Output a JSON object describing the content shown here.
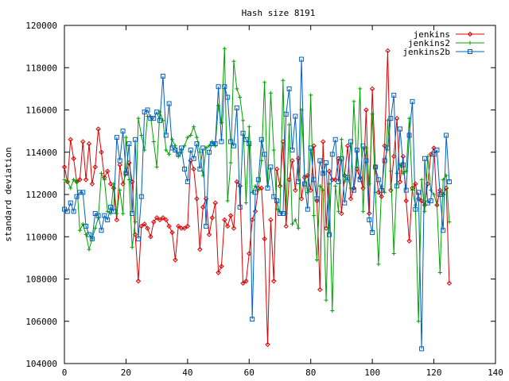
{
  "chart_data": {
    "type": "line",
    "title": "Hash size 8191",
    "xlabel": "",
    "ylabel": "standard deviation",
    "xlim": [
      0,
      140
    ],
    "ylim": [
      104000,
      120000
    ],
    "xticks": [
      0,
      20,
      40,
      60,
      80,
      100,
      120,
      140
    ],
    "yticks": [
      104000,
      106000,
      108000,
      110000,
      112000,
      114000,
      116000,
      118000,
      120000
    ],
    "legend_position": "top-right",
    "grid": false,
    "x": [
      0,
      1,
      2,
      3,
      4,
      5,
      6,
      7,
      8,
      9,
      10,
      11,
      12,
      13,
      14,
      15,
      16,
      17,
      18,
      19,
      20,
      21,
      22,
      23,
      24,
      25,
      26,
      27,
      28,
      29,
      30,
      31,
      32,
      33,
      34,
      35,
      36,
      37,
      38,
      39,
      40,
      41,
      42,
      43,
      44,
      45,
      46,
      47,
      48,
      49,
      50,
      51,
      52,
      53,
      54,
      55,
      56,
      57,
      58,
      59,
      60,
      61,
      62,
      63,
      64,
      65,
      66,
      67,
      68,
      69,
      70,
      71,
      72,
      73,
      74,
      75,
      76,
      77,
      78,
      79,
      80,
      81,
      82,
      83,
      84,
      85,
      86,
      87,
      88,
      89,
      90,
      91,
      92,
      93,
      94,
      95,
      96,
      97,
      98,
      99,
      100,
      101,
      102,
      103,
      104,
      105,
      106,
      107,
      108,
      109,
      110,
      111,
      112,
      113,
      114,
      115,
      116,
      117,
      118,
      119,
      120,
      121,
      122,
      123,
      124,
      125
    ],
    "series": [
      {
        "name": "jenkins",
        "color": "#dd0000",
        "marker": "diamond",
        "values": [
          113300,
          112600,
          114600,
          113700,
          112600,
          112700,
          114500,
          112700,
          114400,
          112500,
          113300,
          115100,
          114000,
          112800,
          113100,
          112500,
          112300,
          110800,
          113400,
          112500,
          113000,
          113500,
          112600,
          110100,
          107900,
          110500,
          110600,
          110400,
          110000,
          110700,
          110900,
          110800,
          110900,
          110800,
          110500,
          110200,
          108900,
          110500,
          110400,
          110400,
          110500,
          113600,
          113200,
          111800,
          109400,
          111400,
          111800,
          110100,
          110900,
          111600,
          108300,
          108600,
          110800,
          110500,
          111000,
          110400,
          112600,
          112400,
          107800,
          107900,
          109200,
          110800,
          111200,
          112300,
          112300,
          109900,
          104900,
          110800,
          107900,
          113200,
          112400,
          114500,
          110500,
          112700,
          113600,
          112200,
          113700,
          111800,
          112800,
          112900,
          112200,
          114300,
          111700,
          107500,
          114500,
          110400,
          113100,
          112700,
          112700,
          113700,
          111100,
          112900,
          114300,
          111800,
          112300,
          113200,
          112800,
          112300,
          116000,
          111100,
          117000,
          113300,
          112100,
          111900,
          114300,
          118800,
          112200,
          113800,
          115600,
          112600,
          113800,
          111700,
          109800,
          112300,
          112500,
          111800,
          111700,
          111500,
          112500,
          113900,
          114200,
          111500,
          112200,
          112000,
          112300,
          107800
        ]
      },
      {
        "name": "jenkins2",
        "color": "#00a000",
        "marker": "plus",
        "values": [
          112700,
          112600,
          112300,
          112700,
          112600,
          110300,
          110600,
          110100,
          109400,
          109900,
          110400,
          110900,
          113000,
          112700,
          111200,
          111100,
          112500,
          111100,
          112200,
          111100,
          114700,
          112700,
          109500,
          110700,
          115600,
          114800,
          114100,
          115700,
          115700,
          114500,
          113300,
          115900,
          115500,
          114100,
          113900,
          114600,
          114300,
          113800,
          114000,
          114300,
          114700,
          114800,
          115200,
          114700,
          114000,
          112900,
          114200,
          114300,
          114500,
          114300,
          116200,
          115400,
          118900,
          111700,
          113500,
          118300,
          117000,
          116600,
          115500,
          111600,
          115200,
          112100,
          112400,
          112200,
          113600,
          117300,
          112400,
          116800,
          114100,
          111300,
          111200,
          117400,
          111100,
          115300,
          110600,
          110800,
          110400,
          116000,
          112900,
          112100,
          116700,
          111000,
          108900,
          112400,
          112200,
          107000,
          112500,
          106500,
          112400,
          111200,
          114600,
          112600,
          112800,
          112300,
          116400,
          113300,
          117000,
          111200,
          114200,
          112500,
          115800,
          112100,
          108700,
          112400,
          112100,
          115500,
          113100,
          109200,
          113000,
          113400,
          113000,
          113100,
          115600,
          112200,
          111500,
          106000,
          112700,
          111200,
          113800,
          112200,
          112000,
          111500,
          108300,
          112700,
          112900,
          110700
        ]
      },
      {
        "name": "jenkins2b",
        "color": "#0060c0",
        "marker": "square",
        "values": [
          111300,
          111200,
          111600,
          111200,
          111900,
          112100,
          112100,
          110500,
          110100,
          109900,
          111100,
          111000,
          110300,
          111000,
          110800,
          111400,
          111200,
          114700,
          113600,
          115000,
          113000,
          114400,
          111100,
          114600,
          109900,
          111900,
          115900,
          116000,
          115600,
          115600,
          115900,
          115500,
          117600,
          114800,
          116300,
          114200,
          114100,
          113900,
          114200,
          113200,
          112600,
          114100,
          113700,
          114400,
          113200,
          114200,
          110500,
          114000,
          114400,
          114400,
          117100,
          114500,
          117100,
          116600,
          114500,
          114300,
          116100,
          111400,
          114900,
          114600,
          114400,
          106100,
          112100,
          112700,
          114600,
          113900,
          112300,
          113300,
          111900,
          111700,
          111100,
          111100,
          115800,
          117000,
          114100,
          115700,
          112600,
          118400,
          112500,
          111300,
          114200,
          112700,
          111800,
          113600,
          113000,
          113500,
          110100,
          113900,
          114600,
          112600,
          113700,
          111600,
          112800,
          114500,
          112200,
          114100,
          112700,
          114300,
          113600,
          110800,
          110200,
          113300,
          112700,
          112200,
          113600,
          114200,
          115600,
          116700,
          112400,
          115100,
          113400,
          112200,
          114800,
          116400,
          111300,
          112100,
          104700,
          113700,
          111600,
          111700,
          113900,
          114100,
          112000,
          110300,
          114800,
          112600
        ]
      }
    ]
  }
}
